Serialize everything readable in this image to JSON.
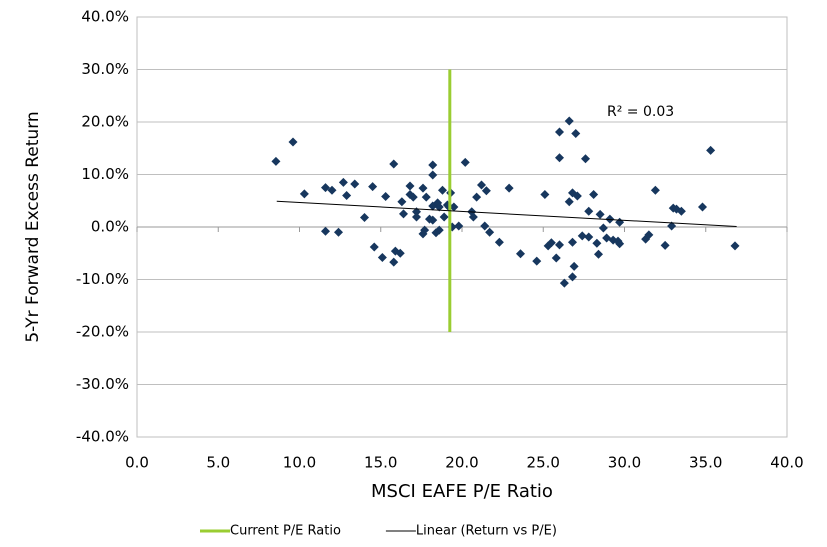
{
  "chart_data": {
    "type": "scatter",
    "xlabel": "MSCI EAFE P/E Ratio",
    "ylabel": "5-Yr Forward Excess Return",
    "annotation": "R² = 0.03",
    "xlim": [
      0,
      40
    ],
    "ylim": [
      -40,
      40
    ],
    "xticks": [
      {
        "value": 0,
        "label": "0.0"
      },
      {
        "value": 5,
        "label": "5.0"
      },
      {
        "value": 10,
        "label": "10.0"
      },
      {
        "value": 15,
        "label": "15.0"
      },
      {
        "value": 20,
        "label": "20.0"
      },
      {
        "value": 25,
        "label": "25.0"
      },
      {
        "value": 30,
        "label": "30.0"
      },
      {
        "value": 35,
        "label": "35.0"
      },
      {
        "value": 40,
        "label": "40.0"
      }
    ],
    "yticks": [
      {
        "value": -40,
        "label": "-40.0%"
      },
      {
        "value": -30,
        "label": "-30.0%"
      },
      {
        "value": -20,
        "label": "-20.0%"
      },
      {
        "value": -10,
        "label": "-10.0%"
      },
      {
        "value": 0,
        "label": "0.0%"
      },
      {
        "value": 10,
        "label": "10.0%"
      },
      {
        "value": 20,
        "label": "20.0%"
      },
      {
        "value": 30,
        "label": "30.0%"
      },
      {
        "value": 40,
        "label": "40.0%"
      }
    ],
    "grid": true,
    "legend": "bottom",
    "series": [
      {
        "type": "scatter",
        "color": "#17375e",
        "x": [
          8.55,
          9.6,
          10.3,
          11.6,
          12.0,
          11.6,
          12.4,
          12.7,
          13.4,
          12.9,
          14.0,
          14.5,
          14.6,
          15.3,
          15.1,
          15.8,
          15.8,
          15.9,
          16.2,
          16.3,
          16.4,
          16.8,
          16.8,
          17.0,
          17.2,
          17.2,
          17.6,
          17.6,
          17.7,
          17.8,
          18.0,
          18.2,
          18.2,
          18.2,
          18.2,
          18.4,
          18.5,
          18.6,
          18.6,
          18.8,
          18.9,
          19.1,
          19.2,
          19.3,
          19.4,
          19.5,
          19.8,
          20.2,
          20.6,
          20.7,
          20.9,
          21.2,
          21.4,
          21.5,
          21.7,
          22.3,
          22.9,
          23.6,
          24.6,
          25.1,
          25.3,
          25.5,
          25.8,
          26.0,
          26.0,
          26.0,
          26.3,
          26.6,
          26.6,
          26.8,
          26.8,
          26.9,
          27.0,
          26.8,
          27.1,
          27.4,
          27.6,
          27.8,
          27.8,
          28.1,
          28.3,
          28.4,
          28.5,
          28.7,
          28.9,
          29.1,
          29.3,
          29.6,
          29.7,
          29.7,
          31.3,
          31.5,
          31.9,
          32.5,
          32.9,
          33.0,
          33.2,
          33.5,
          34.8,
          35.3,
          36.8
        ],
        "values": [
          12.5,
          16.2,
          6.3,
          7.5,
          7.0,
          -0.8,
          -1.0,
          8.5,
          8.2,
          6.0,
          1.8,
          7.7,
          -3.8,
          5.8,
          -5.8,
          12.0,
          -6.7,
          -4.6,
          -5.0,
          4.8,
          2.5,
          7.8,
          6.2,
          5.7,
          2.9,
          1.9,
          7.4,
          -1.3,
          -0.6,
          5.7,
          1.5,
          1.3,
          4.0,
          9.9,
          11.8,
          -1.1,
          4.6,
          3.8,
          -0.6,
          7.0,
          1.9,
          4.2,
          3.8,
          6.5,
          0.0,
          3.8,
          0.2,
          12.3,
          2.9,
          1.9,
          5.7,
          8.0,
          0.2,
          6.9,
          -1.0,
          -2.9,
          7.4,
          -5.1,
          -6.5,
          6.2,
          -3.6,
          -3.0,
          -5.9,
          13.2,
          18.1,
          -3.4,
          -10.7,
          4.8,
          20.2,
          -2.9,
          -9.5,
          -7.5,
          17.8,
          6.5,
          5.9,
          -1.7,
          13.0,
          3.0,
          -1.9,
          6.2,
          -3.1,
          -5.2,
          2.4,
          -0.2,
          -2.1,
          1.5,
          -2.5,
          -2.7,
          0.9,
          -3.2,
          -2.3,
          -1.5,
          7.0,
          -3.5,
          0.2,
          3.6,
          3.4,
          3.0,
          3.8,
          14.6,
          -3.6
        ]
      },
      {
        "type": "line",
        "name": "Current P/E Ratio",
        "color": "#9acd32",
        "width": 3,
        "x": [
          19.25,
          19.25
        ],
        "values": [
          30,
          -20
        ]
      },
      {
        "type": "line",
        "name": "Linear (Return vs P/E)",
        "color": "#000000",
        "width": 1,
        "x": [
          8.6,
          36.9
        ],
        "values": [
          4.9,
          0.1
        ]
      }
    ]
  }
}
